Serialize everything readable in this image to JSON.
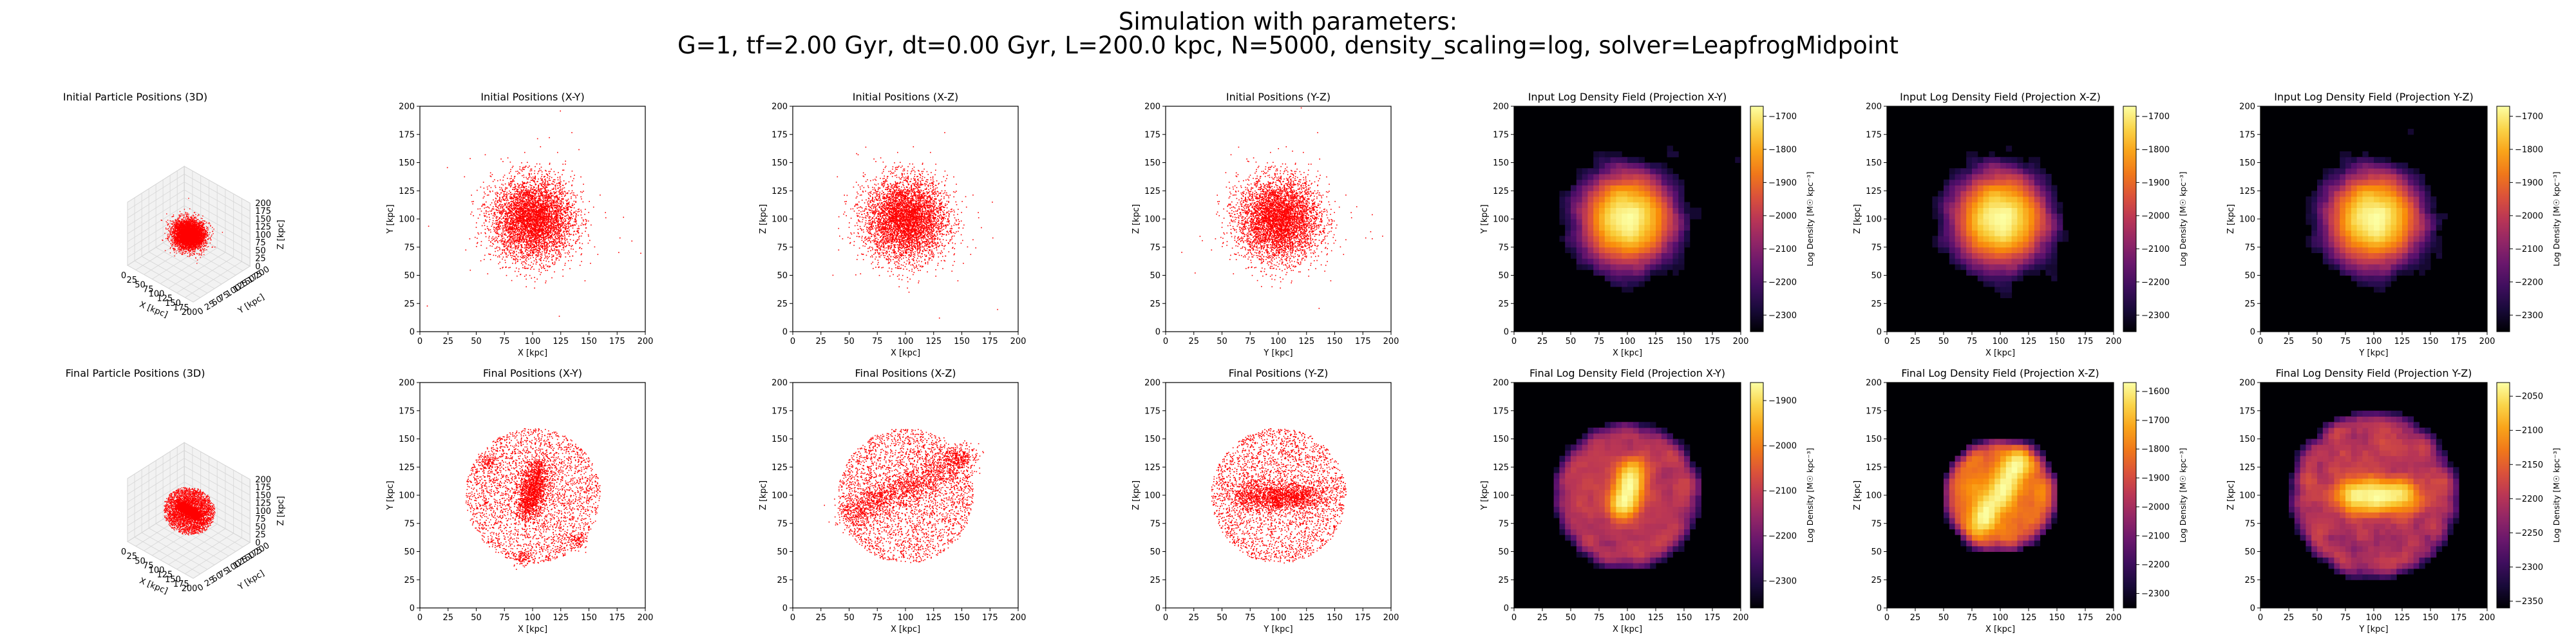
{
  "figure": {
    "suptitle_line1": "Simulation with parameters:",
    "suptitle_line2": "G=1, tf=2.00 Gyr, dt=0.00 Gyr, L=200.0 kpc, N=5000, density_scaling=log, solver=LeapfrogMidpoint"
  },
  "chart_data": [
    {
      "id": "init3d",
      "type": "scatter",
      "projection": "3d",
      "title": "Initial Particle Positions (3D)",
      "xlabel": "X [kpc]",
      "ylabel": "Y [kpc]",
      "zlabel": "Z [kpc]",
      "xlim": [
        0,
        200
      ],
      "ylim": [
        0,
        200
      ],
      "zlim": [
        0,
        200
      ],
      "ticks": [
        0,
        25,
        50,
        75,
        100,
        125,
        150,
        175,
        200
      ],
      "ztick_labels": [
        "0",
        "25",
        "50",
        "75",
        "100",
        "125",
        "150",
        "175",
        "200"
      ],
      "color": "#ff0000",
      "n_points": 5000,
      "center": [
        100,
        100,
        100
      ],
      "spread_kpc": 18,
      "distribution": "gaussian blob"
    },
    {
      "id": "initxy",
      "type": "scatter",
      "title": "Initial Positions (X-Y)",
      "xlabel": "X [kpc]",
      "ylabel": "Y [kpc]",
      "xlim": [
        0,
        200
      ],
      "ylim": [
        0,
        200
      ],
      "xticks": [
        0,
        25,
        50,
        75,
        100,
        125,
        150,
        175,
        200
      ],
      "yticks": [
        0,
        25,
        50,
        75,
        100,
        125,
        150,
        175,
        200
      ],
      "color": "#ff0000",
      "n_points": 5000,
      "center": [
        100,
        100
      ],
      "spread_kpc": 18,
      "distribution": "gaussian blob"
    },
    {
      "id": "initxz",
      "type": "scatter",
      "title": "Initial Positions (X-Z)",
      "xlabel": "X [kpc]",
      "ylabel": "Z [kpc]",
      "xlim": [
        0,
        200
      ],
      "ylim": [
        0,
        200
      ],
      "xticks": [
        0,
        25,
        50,
        75,
        100,
        125,
        150,
        175,
        200
      ],
      "yticks": [
        0,
        25,
        50,
        75,
        100,
        125,
        150,
        175,
        200
      ],
      "color": "#ff0000",
      "n_points": 5000,
      "center": [
        100,
        100
      ],
      "spread_kpc": 18,
      "distribution": "gaussian blob"
    },
    {
      "id": "inityz",
      "type": "scatter",
      "title": "Initial Positions (Y-Z)",
      "xlabel": "Y [kpc]",
      "ylabel": "Z [kpc]",
      "xlim": [
        0,
        200
      ],
      "ylim": [
        0,
        200
      ],
      "xticks": [
        0,
        25,
        50,
        75,
        100,
        125,
        150,
        175,
        200
      ],
      "yticks": [
        0,
        25,
        50,
        75,
        100,
        125,
        150,
        175,
        200
      ],
      "color": "#ff0000",
      "n_points": 5000,
      "center": [
        100,
        100
      ],
      "spread_kpc": 18,
      "distribution": "gaussian blob"
    },
    {
      "id": "dinitxy",
      "type": "heatmap",
      "colormap": "inferno",
      "title": "Input Log Density Field (Projection X-Y)",
      "xlabel": "X [kpc]",
      "ylabel": "Y [kpc]",
      "xlim": [
        0,
        200
      ],
      "ylim": [
        0,
        200
      ],
      "xticks": [
        0,
        25,
        50,
        75,
        100,
        125,
        150,
        175,
        200
      ],
      "yticks": [
        0,
        25,
        50,
        75,
        100,
        125,
        150,
        175,
        200
      ],
      "colorbar_label": "Log Density [M☉ kpc⁻³]",
      "clim": [
        -2350,
        -1670
      ],
      "colorbar_ticks": [
        -1700,
        -1800,
        -1900,
        -2000,
        -2100,
        -2200,
        -2300
      ],
      "colorbar_tick_labels": [
        "−1700",
        "−1800",
        "−1900",
        "−2000",
        "−2100",
        "−2200",
        "−2300"
      ],
      "structure": "central blob",
      "center": [
        100,
        100
      ],
      "spread_kpc": 18
    },
    {
      "id": "dinitxz",
      "type": "heatmap",
      "colormap": "inferno",
      "title": "Input Log Density Field (Projection X-Z)",
      "xlabel": "X [kpc]",
      "ylabel": "Z [kpc]",
      "xlim": [
        0,
        200
      ],
      "ylim": [
        0,
        200
      ],
      "xticks": [
        0,
        25,
        50,
        75,
        100,
        125,
        150,
        175,
        200
      ],
      "yticks": [
        0,
        25,
        50,
        75,
        100,
        125,
        150,
        175,
        200
      ],
      "colorbar_label": "Log Density [M☉ kpc⁻³]",
      "clim": [
        -2350,
        -1670
      ],
      "colorbar_ticks": [
        -1700,
        -1800,
        -1900,
        -2000,
        -2100,
        -2200,
        -2300
      ],
      "colorbar_tick_labels": [
        "−1700",
        "−1800",
        "−1900",
        "−2000",
        "−2100",
        "−2200",
        "−2300"
      ],
      "structure": "central blob",
      "center": [
        100,
        100
      ],
      "spread_kpc": 18
    },
    {
      "id": "dinityz",
      "type": "heatmap",
      "colormap": "inferno",
      "title": "Input Log Density Field (Projection Y-Z)",
      "xlabel": "Y [kpc]",
      "ylabel": "Z [kpc]",
      "xlim": [
        0,
        200
      ],
      "ylim": [
        0,
        200
      ],
      "xticks": [
        0,
        25,
        50,
        75,
        100,
        125,
        150,
        175,
        200
      ],
      "yticks": [
        0,
        25,
        50,
        75,
        100,
        125,
        150,
        175,
        200
      ],
      "colorbar_label": "Log Density [M☉ kpc⁻³]",
      "clim": [
        -2350,
        -1670
      ],
      "colorbar_ticks": [
        -1700,
        -1800,
        -1900,
        -2000,
        -2100,
        -2200,
        -2300
      ],
      "colorbar_tick_labels": [
        "−1700",
        "−1800",
        "−1900",
        "−2000",
        "−2100",
        "−2200",
        "−2300"
      ],
      "structure": "central blob",
      "center": [
        100,
        100
      ],
      "spread_kpc": 18
    },
    {
      "id": "final3d",
      "type": "scatter",
      "projection": "3d",
      "title": "Final Particle Positions (3D)",
      "xlabel": "X [kpc]",
      "ylabel": "Y [kpc]",
      "zlabel": "Z [kpc]",
      "xlim": [
        0,
        200
      ],
      "ylim": [
        0,
        200
      ],
      "zlim": [
        0,
        200
      ],
      "ticks": [
        0,
        25,
        50,
        75,
        100,
        125,
        150,
        175,
        200
      ],
      "ztick_labels": [
        "0",
        "25",
        "50",
        "75",
        "100",
        "125",
        "150",
        "175",
        "200"
      ],
      "color": "#ff0000",
      "n_points": 5000,
      "center": [
        100,
        100,
        100
      ],
      "radius_kpc": 60,
      "distribution": "scattered halo with central filament"
    },
    {
      "id": "finalxy",
      "type": "scatter",
      "title": "Final Positions (X-Y)",
      "xlabel": "X [kpc]",
      "ylabel": "Y [kpc]",
      "xlim": [
        0,
        200
      ],
      "ylim": [
        0,
        200
      ],
      "xticks": [
        0,
        25,
        50,
        75,
        100,
        125,
        150,
        175,
        200
      ],
      "yticks": [
        0,
        25,
        50,
        75,
        100,
        125,
        150,
        175,
        200
      ],
      "color": "#ff0000",
      "n_points": 5000,
      "center": [
        100,
        100
      ],
      "radius_kpc": 60,
      "filament": {
        "from": [
          95,
          85
        ],
        "to": [
          105,
          125
        ],
        "width_kpc": 6
      },
      "clumps": [
        [
          92,
          45
        ],
        [
          60,
          130
        ],
        [
          140,
          60
        ]
      ]
    },
    {
      "id": "finalxz",
      "type": "scatter",
      "title": "Final Positions (X-Z)",
      "xlabel": "X [kpc]",
      "ylabel": "Z [kpc]",
      "xlim": [
        0,
        200
      ],
      "ylim": [
        0,
        200
      ],
      "xticks": [
        0,
        25,
        50,
        75,
        100,
        125,
        150,
        175,
        200
      ],
      "yticks": [
        0,
        25,
        50,
        75,
        100,
        125,
        150,
        175,
        200
      ],
      "color": "#ff0000",
      "n_points": 5000,
      "center": [
        100,
        100
      ],
      "radius_kpc": 60,
      "filament": {
        "from": [
          45,
          80
        ],
        "to": [
          155,
          135
        ],
        "width_kpc": 7
      },
      "clumps": [
        [
          150,
          135
        ]
      ]
    },
    {
      "id": "finalyz",
      "type": "scatter",
      "title": "Final Positions (Y-Z)",
      "xlabel": "Y [kpc]",
      "ylabel": "Z [kpc]",
      "xlim": [
        0,
        200
      ],
      "ylim": [
        0,
        200
      ],
      "xticks": [
        0,
        25,
        50,
        75,
        100,
        125,
        150,
        175,
        200
      ],
      "yticks": [
        0,
        25,
        50,
        75,
        100,
        125,
        150,
        175,
        200
      ],
      "color": "#ff0000",
      "n_points": 5000,
      "center": [
        100,
        100
      ],
      "radius_kpc": 60,
      "filament": {
        "from": [
          65,
          100
        ],
        "to": [
          135,
          100
        ],
        "width_kpc": 7
      },
      "clumps": [
        [
          98,
          95
        ],
        [
          115,
          98
        ]
      ]
    },
    {
      "id": "dfinalxy",
      "type": "heatmap",
      "colormap": "inferno",
      "title": "Final Log Density Field (Projection X-Y)",
      "xlabel": "X [kpc]",
      "ylabel": "Y [kpc]",
      "xlim": [
        0,
        200
      ],
      "ylim": [
        0,
        200
      ],
      "xticks": [
        0,
        25,
        50,
        75,
        100,
        125,
        150,
        175,
        200
      ],
      "yticks": [
        0,
        25,
        50,
        75,
        100,
        125,
        150,
        175,
        200
      ],
      "colorbar_label": "Log Density [M☉ kpc⁻³]",
      "clim": [
        -2360,
        -1860
      ],
      "colorbar_ticks": [
        -1900,
        -2000,
        -2100,
        -2200,
        -2300
      ],
      "colorbar_tick_labels": [
        "−1900",
        "−2000",
        "−2100",
        "−2200",
        "−2300"
      ],
      "structure": "vertical filament",
      "center": [
        100,
        100
      ],
      "radius_kpc": 60,
      "filament": {
        "from": [
          95,
          85
        ],
        "to": [
          105,
          125
        ],
        "width_kpc": 6
      }
    },
    {
      "id": "dfinalxz",
      "type": "heatmap",
      "colormap": "inferno",
      "title": "Final Log Density Field (Projection X-Z)",
      "xlabel": "X [kpc]",
      "ylabel": "Z [kpc]",
      "xlim": [
        0,
        200
      ],
      "ylim": [
        0,
        200
      ],
      "xticks": [
        0,
        25,
        50,
        75,
        100,
        125,
        150,
        175,
        200
      ],
      "yticks": [
        0,
        25,
        50,
        75,
        100,
        125,
        150,
        175,
        200
      ],
      "colorbar_label": "Log Density [M☉ kpc⁻³]",
      "clim": [
        -2350,
        -1570
      ],
      "colorbar_ticks": [
        -1600,
        -1700,
        -1800,
        -1900,
        -2000,
        -2100,
        -2200,
        -2300
      ],
      "colorbar_tick_labels": [
        "−1600",
        "−1700",
        "−1800",
        "−1900",
        "−2000",
        "−2100",
        "−2200",
        "−2300"
      ],
      "structure": "diagonal filament",
      "center": [
        100,
        100
      ],
      "radius_kpc": 45,
      "filament": {
        "from": [
          80,
          70
        ],
        "to": [
          120,
          135
        ],
        "width_kpc": 6
      }
    },
    {
      "id": "dfinalyz",
      "type": "heatmap",
      "colormap": "inferno",
      "title": "Final Log Density Field (Projection Y-Z)",
      "xlabel": "Y [kpc]",
      "ylabel": "Z [kpc]",
      "xlim": [
        0,
        200
      ],
      "ylim": [
        0,
        200
      ],
      "xticks": [
        0,
        25,
        50,
        75,
        100,
        125,
        150,
        175,
        200
      ],
      "yticks": [
        0,
        25,
        50,
        75,
        100,
        125,
        150,
        175,
        200
      ],
      "colorbar_label": "Log Density [M☉ kpc⁻³]",
      "clim": [
        -2360,
        -2030
      ],
      "colorbar_ticks": [
        -2050,
        -2100,
        -2150,
        -2200,
        -2250,
        -2300,
        -2350
      ],
      "colorbar_tick_labels": [
        "−2050",
        "−2100",
        "−2150",
        "−2200",
        "−2250",
        "−2300",
        "−2350"
      ],
      "structure": "disk with horizontal bar",
      "center": [
        100,
        100
      ],
      "radius_kpc": 70,
      "filament": {
        "from": [
          75,
          100
        ],
        "to": [
          130,
          100
        ],
        "width_kpc": 8
      }
    }
  ]
}
